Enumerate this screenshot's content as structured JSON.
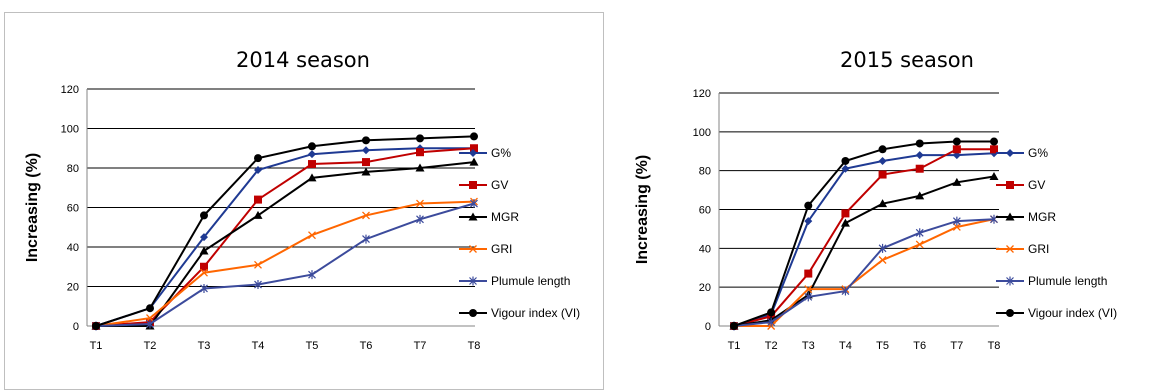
{
  "chart_data": [
    {
      "type": "line",
      "title": "2014 season",
      "xlabel": "",
      "ylabel": "Increasing (%)",
      "ylim": [
        0,
        120
      ],
      "yticks": [
        0,
        20,
        40,
        60,
        80,
        100,
        120
      ],
      "grid": "horizontal",
      "legend": "right",
      "categories": [
        "T1",
        "T2",
        "T3",
        "T4",
        "T5",
        "T6",
        "T7",
        "T8"
      ],
      "series": [
        {
          "name": "G%",
          "color": "#1f3a93",
          "marker": "diamond",
          "values": [
            0,
            9,
            45,
            79,
            87,
            89,
            90,
            90
          ]
        },
        {
          "name": "GV",
          "color": "#c00000",
          "marker": "square",
          "values": [
            0,
            2,
            30,
            64,
            82,
            83,
            88,
            90
          ]
        },
        {
          "name": "MGR",
          "color": "#000000",
          "marker": "triangle",
          "values": [
            0,
            0,
            38,
            56,
            75,
            78,
            80,
            83
          ]
        },
        {
          "name": "GRI",
          "color": "#ff6600",
          "marker": "x",
          "values": [
            0,
            4,
            27,
            31,
            46,
            56,
            62,
            63
          ]
        },
        {
          "name": "Plumule length",
          "color": "#3c4b9c",
          "marker": "star",
          "values": [
            0,
            1,
            19,
            21,
            26,
            44,
            54,
            62
          ]
        },
        {
          "name": "Vigour index (VI)",
          "color": "#000000",
          "marker": "circle",
          "values": [
            0,
            9,
            56,
            85,
            91,
            94,
            95,
            96
          ]
        }
      ]
    },
    {
      "type": "line",
      "title": "2015 season",
      "xlabel": "",
      "ylabel": "Increasing (%)",
      "ylim": [
        0,
        120
      ],
      "yticks": [
        0,
        20,
        40,
        60,
        80,
        100,
        120
      ],
      "grid": "horizontal",
      "legend": "right",
      "categories": [
        "T1",
        "T2",
        "T3",
        "T4",
        "T5",
        "T6",
        "T7",
        "T8"
      ],
      "series": [
        {
          "name": "G%",
          "color": "#1f3a93",
          "marker": "diamond",
          "values": [
            0,
            6,
            54,
            81,
            85,
            88,
            88,
            89
          ]
        },
        {
          "name": "GV",
          "color": "#c00000",
          "marker": "square",
          "values": [
            0,
            5,
            27,
            58,
            78,
            81,
            91,
            91
          ]
        },
        {
          "name": "MGR",
          "color": "#000000",
          "marker": "triangle",
          "values": [
            0,
            3,
            16,
            53,
            63,
            67,
            74,
            77
          ]
        },
        {
          "name": "GRI",
          "color": "#ff6600",
          "marker": "x",
          "values": [
            0,
            0,
            19,
            19,
            34,
            42,
            51,
            55
          ]
        },
        {
          "name": "Plumule length",
          "color": "#3c4b9c",
          "marker": "star",
          "values": [
            0,
            2,
            15,
            18,
            40,
            48,
            54,
            55
          ]
        },
        {
          "name": "Vigour index (VI)",
          "color": "#000000",
          "marker": "circle",
          "values": [
            0,
            7,
            62,
            85,
            91,
            94,
            95,
            95
          ]
        }
      ]
    }
  ]
}
